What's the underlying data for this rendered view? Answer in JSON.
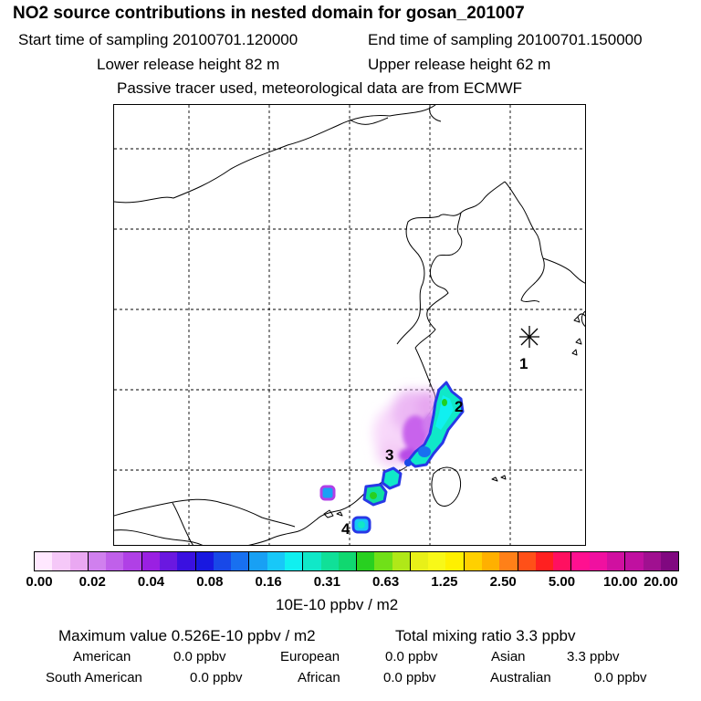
{
  "header": {
    "title": "NO2 source contributions in nested domain for gosan_201007",
    "start_time": "Start time of sampling 20100701.120000",
    "end_time": "End time of sampling 20100701.150000",
    "lower_release": "Lower release height   82 m",
    "upper_release": "Upper release height   62 m",
    "tracer_note": "Passive tracer used, meteorological data are from ECMWF"
  },
  "map": {
    "receptor_marker": "1",
    "source_labels": [
      "2",
      "3",
      "4"
    ]
  },
  "colorbar": {
    "colors": [
      "#ffe8ff",
      "#f5c8f8",
      "#eaa8f2",
      "#d080ee",
      "#c060ea",
      "#b040e6",
      "#9a20e2",
      "#6a18e0",
      "#3a10e0",
      "#1818e0",
      "#1848e8",
      "#1870f0",
      "#18a0f4",
      "#18c8f8",
      "#10f0f0",
      "#10e8c8",
      "#10e098",
      "#10d870",
      "#28d020",
      "#70e018",
      "#b0e818",
      "#e8f018",
      "#f8f818",
      "#fff000",
      "#ffd000",
      "#ffb000",
      "#ff8018",
      "#ff5018",
      "#ff2020",
      "#ff1060",
      "#ff1090",
      "#f010a0",
      "#d010a0",
      "#c010a0",
      "#a01090",
      "#800880"
    ],
    "tick_labels": [
      "0.00",
      "0.02",
      "0.04",
      "0.08",
      "0.16",
      "0.31",
      "0.63",
      "1.25",
      "2.50",
      "5.00",
      "10.00",
      "20.00"
    ],
    "units": "10E-10 ppbv / m2"
  },
  "stats": {
    "max_value": "Maximum value  0.526E-10 ppbv / m2",
    "total_mixing": "Total mixing ratio       3.3 ppbv",
    "regions": [
      {
        "name": "American",
        "value": "0.0 ppbv"
      },
      {
        "name": "European",
        "value": "0.0 ppbv"
      },
      {
        "name": "Asian",
        "value": "3.3 ppbv"
      },
      {
        "name": "South American",
        "value": "0.0 ppbv"
      },
      {
        "name": "African",
        "value": "0.0 ppbv"
      },
      {
        "name": "Australian",
        "value": "0.0 ppbv"
      }
    ]
  }
}
